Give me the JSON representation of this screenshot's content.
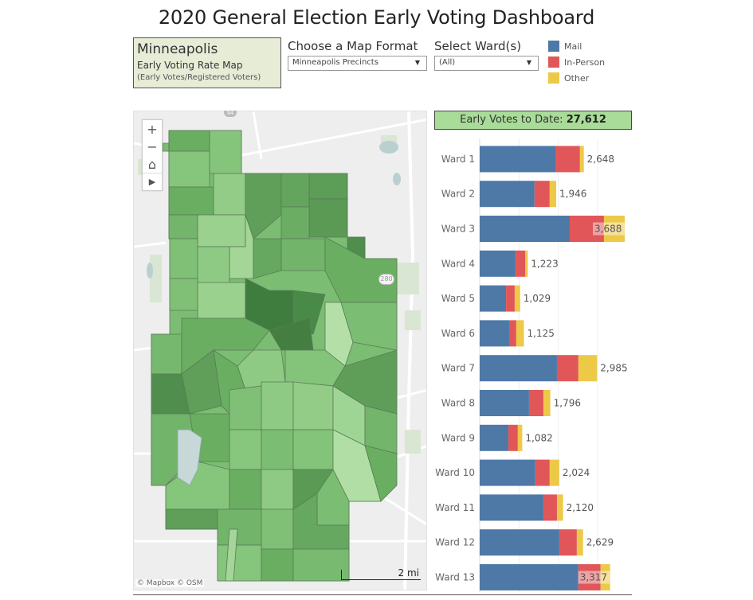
{
  "title": "2020 General Election Early Voting Dashboard",
  "city_box": {
    "city": "Minneapolis",
    "subtitle": "Early Voting Rate Map",
    "note": "(Early Votes/Registered Voters)"
  },
  "filters": {
    "map_format": {
      "label": "Choose a Map Format",
      "value": "Minneapolis Precincts"
    },
    "ward": {
      "label": "Select Ward(s)",
      "value": "(All)"
    }
  },
  "legend": [
    {
      "label": "Mail",
      "color": "#4e79a7"
    },
    {
      "label": "In-Person",
      "color": "#e15759"
    },
    {
      "label": "Other",
      "color": "#edc948"
    }
  ],
  "map": {
    "controls": [
      {
        "name": "zoom-in",
        "glyph": "+"
      },
      {
        "name": "zoom-out",
        "glyph": "−"
      },
      {
        "name": "home",
        "glyph": "⌂"
      },
      {
        "name": "play",
        "glyph": "▶"
      }
    ],
    "attribution": "© Mapbox  © OSM",
    "scale_label": "2 mi",
    "highway_shield": "280",
    "highway_shield_top": "94"
  },
  "total": {
    "label": "Early Votes to Date:",
    "value": "27,612"
  },
  "chart_data": {
    "type": "bar",
    "orientation": "horizontal",
    "stacked": true,
    "categories": [
      "Ward 1",
      "Ward 2",
      "Ward 3",
      "Ward 4",
      "Ward 5",
      "Ward 6",
      "Ward 7",
      "Ward 8",
      "Ward 9",
      "Ward 10",
      "Ward 11",
      "Ward 12",
      "Ward 13"
    ],
    "series": [
      {
        "name": "Mail",
        "color": "#4e79a7",
        "values": [
          1925,
          1395,
          2290,
          910,
          670,
          750,
          1965,
          1255,
          730,
          1415,
          1620,
          2025,
          2510
        ]
      },
      {
        "name": "In-Person",
        "color": "#e15759",
        "values": [
          625,
          385,
          870,
          245,
          220,
          180,
          545,
          365,
          240,
          365,
          345,
          445,
          565
        ]
      },
      {
        "name": "Other",
        "color": "#edc948",
        "values": [
          98,
          166,
          528,
          68,
          139,
          195,
          475,
          176,
          112,
          244,
          155,
          159,
          242
        ]
      }
    ],
    "totals": [
      2648,
      1946,
      3688,
      1223,
      1029,
      1125,
      2985,
      1796,
      1082,
      2024,
      2120,
      2629,
      3317
    ],
    "total_labels": [
      "2,648",
      "1,946",
      "3,688",
      "1,223",
      "1,029",
      "1,125",
      "2,985",
      "1,796",
      "1,082",
      "2,024",
      "2,120",
      "2,629",
      "3,317"
    ],
    "xlim": [
      0,
      4000
    ],
    "grid": true,
    "gridline_step": 1000,
    "xlabel": "",
    "ylabel": ""
  }
}
